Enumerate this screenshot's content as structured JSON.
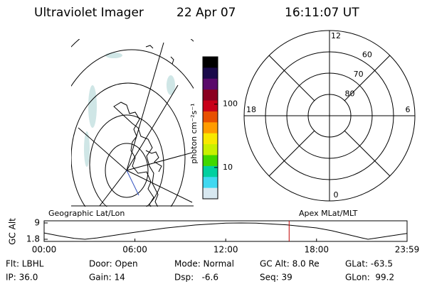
{
  "header": {
    "title": "Ultraviolet Imager",
    "date": "22 Apr 07",
    "time": "16:11:07 UT"
  },
  "map": {
    "label": "Geographic Lat/Lon"
  },
  "chart_data": [
    {
      "type": "colorbar",
      "label": "photon cm⁻²s⁻¹",
      "log": true,
      "ylim": [
        3.2,
        560
      ],
      "yticks": [
        10,
        100
      ],
      "colors": [
        "#000000",
        "#1a0a4a",
        "#5a0a6a",
        "#8a0020",
        "#c80018",
        "#e85000",
        "#ff9c00",
        "#f8e800",
        "#c8f000",
        "#40d800",
        "#00d0a0",
        "#40d8f0",
        "#d8e8f0"
      ]
    },
    {
      "type": "polar",
      "title": "Apex MLat/MLT",
      "rlim": [
        90,
        50
      ],
      "rticks": [
        80,
        70,
        60
      ],
      "hourticks": [
        12,
        18,
        6,
        0
      ]
    },
    {
      "type": "line",
      "ylabel": "GC Alt",
      "color": "#000000",
      "marker_color": "#c00000",
      "xlim": [
        0,
        23.983
      ],
      "xticks": [
        {
          "value": 0,
          "label": "00:00"
        },
        {
          "value": 6,
          "label": "06:00"
        },
        {
          "value": 12,
          "label": "12:00"
        },
        {
          "value": 18,
          "label": "18:00"
        },
        {
          "value": 23.983,
          "label": "23:59"
        }
      ],
      "ylim": [
        1.8,
        9.0
      ],
      "yticks": [
        9.0,
        1.8
      ],
      "x": [
        0,
        1,
        2,
        2.7,
        3.5,
        5,
        6,
        8,
        10,
        12,
        13,
        14,
        16,
        18,
        19,
        20,
        21,
        21.4,
        22,
        23,
        23.983
      ],
      "values": [
        4.6,
        3.3,
        2.2,
        1.8,
        2.4,
        3.9,
        4.9,
        6.7,
        8.1,
        8.9,
        9.0,
        8.9,
        8.2,
        6.8,
        5.6,
        4.0,
        2.4,
        1.8,
        2.4,
        3.4,
        4.4
      ],
      "marker_x": 16.19
    }
  ],
  "footer": {
    "rows": [
      [
        "Flt: LBHL",
        "Door: Open",
        "Mode: Normal",
        "GC Alt: 8.0 Re",
        "GLat: -63.5"
      ],
      [
        "IP: 36.0",
        "Gain: 14",
        "Dsp:   -6.6",
        "Seq: 39",
        "GLon:  99.2"
      ]
    ]
  }
}
